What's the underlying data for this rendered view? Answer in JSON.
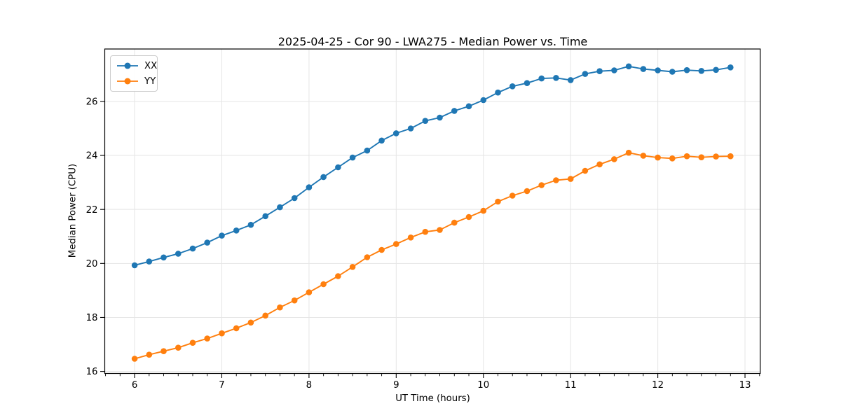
{
  "chart_data": {
    "type": "line",
    "title": "2025-04-25 - Cor 90 - LWA275 - Median Power vs. Time",
    "xlabel": "UT Time (hours)",
    "ylabel": "Median Power (CPU)",
    "xlim": [
      5.658,
      13.175
    ],
    "ylim": [
      15.925,
      27.942
    ],
    "xticks": [
      6,
      7,
      8,
      9,
      10,
      11,
      12,
      13
    ],
    "xtick_labels": [
      "6",
      "7",
      "8",
      "9",
      "10",
      "11",
      "12",
      "13"
    ],
    "yticks": [
      16,
      18,
      20,
      22,
      24,
      26
    ],
    "ytick_labels": [
      "16",
      "18",
      "20",
      "22",
      "24",
      "26"
    ],
    "minor_xtick_step": 0.166667,
    "grid": true,
    "legend_position": "upper-left",
    "x": [
      6,
      6.1667,
      6.3333,
      6.5,
      6.6667,
      6.8333,
      7,
      7.1667,
      7.3333,
      7.5,
      7.6667,
      7.8333,
      8,
      8.1667,
      8.3333,
      8.5,
      8.6667,
      8.8333,
      9,
      9.1667,
      9.3333,
      9.5,
      9.6667,
      9.8333,
      10,
      10.1667,
      10.3333,
      10.5,
      10.6667,
      10.8333,
      11,
      11.1667,
      11.3333,
      11.5,
      11.6667,
      11.8333,
      12,
      12.1667,
      12.3333,
      12.5,
      12.6667,
      12.8333
    ],
    "series": [
      {
        "name": "XX",
        "color": "#1f77b4",
        "values": [
          19.93,
          20.07,
          20.22,
          20.36,
          20.55,
          20.77,
          21.03,
          21.22,
          21.43,
          21.75,
          22.08,
          22.42,
          22.82,
          23.2,
          23.56,
          23.92,
          24.18,
          24.55,
          24.82,
          25.0,
          25.28,
          25.4,
          25.65,
          25.82,
          26.05,
          26.33,
          26.56,
          26.68,
          26.85,
          26.87,
          26.79,
          27.02,
          27.12,
          27.15,
          27.3,
          27.2,
          27.15,
          27.1,
          27.16,
          27.13,
          27.17,
          27.26
        ]
      },
      {
        "name": "YY",
        "color": "#ff7f0e",
        "values": [
          16.47,
          16.62,
          16.75,
          16.88,
          17.06,
          17.22,
          17.41,
          17.6,
          17.81,
          18.07,
          18.37,
          18.63,
          18.93,
          19.23,
          19.53,
          19.87,
          20.23,
          20.5,
          20.72,
          20.96,
          21.17,
          21.24,
          21.51,
          21.72,
          21.95,
          22.29,
          22.51,
          22.68,
          22.9,
          23.08,
          23.13,
          23.43,
          23.67,
          23.86,
          24.1,
          23.99,
          23.92,
          23.89,
          23.97,
          23.93,
          23.96,
          23.97
        ]
      }
    ]
  },
  "style": {
    "grid_color": "#e5e5e5",
    "spine_color": "#000000",
    "tick_color": "#000000",
    "text_color": "#000000",
    "background": "#ffffff",
    "legend_border": "#cccccc"
  }
}
